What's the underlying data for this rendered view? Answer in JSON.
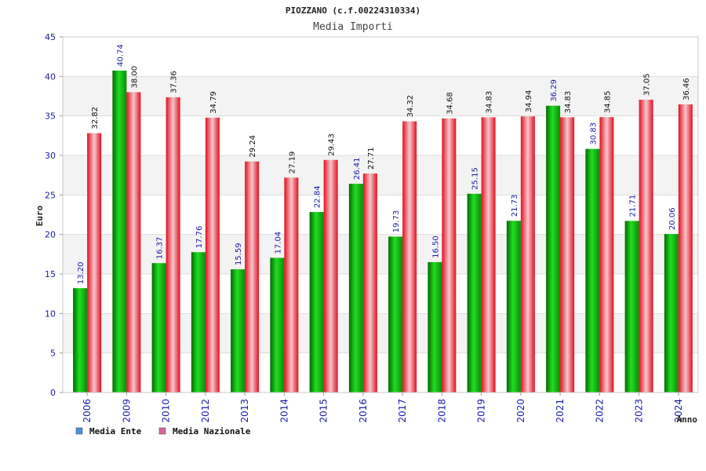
{
  "chart_data": {
    "type": "bar",
    "title": "PIOZZANO (c.f.00224310334)",
    "subtitle": "Media Importi",
    "xlabel": "Anno",
    "ylabel": "Euro",
    "ylim": [
      0,
      45
    ],
    "yticks": [
      0,
      5,
      10,
      15,
      20,
      25,
      30,
      35,
      40,
      45
    ],
    "categories": [
      "2006",
      "2009",
      "2010",
      "2012",
      "2013",
      "2014",
      "2015",
      "2016",
      "2017",
      "2018",
      "2019",
      "2020",
      "2021",
      "2022",
      "2023",
      "2024"
    ],
    "series": [
      {
        "name": "Media Ente",
        "color": "#12b312",
        "legend_color": "#4a90e2",
        "values": [
          13.2,
          40.74,
          16.37,
          17.76,
          15.59,
          17.04,
          22.84,
          26.41,
          19.73,
          16.5,
          25.15,
          21.73,
          36.29,
          30.83,
          21.71,
          20.06
        ],
        "labels": [
          "13.20",
          "40.74",
          "16.37",
          "17.76",
          "15.59",
          "17.04",
          "22.84",
          "26.41",
          "19.73",
          "16.50",
          "25.15",
          "21.73",
          "36.29",
          "30.83",
          "21.71",
          "20.06"
        ]
      },
      {
        "name": "Media Nazionale",
        "color": "#e8323c",
        "legend_color": "#d66a9a",
        "values": [
          32.82,
          38.0,
          37.36,
          34.79,
          29.24,
          27.19,
          29.43,
          27.71,
          34.32,
          34.68,
          34.83,
          34.94,
          34.83,
          34.85,
          37.05,
          36.46
        ],
        "labels": [
          "32.82",
          "38.00",
          "37.36",
          "34.79",
          "29.24",
          "27.19",
          "29.43",
          "27.71",
          "34.32",
          "34.68",
          "34.83",
          "34.94",
          "34.83",
          "34.85",
          "37.05",
          "36.46"
        ]
      }
    ],
    "grid": true,
    "legend_position": "bottom-left"
  },
  "colors": {
    "axis_text": "#1a1aa6",
    "label_ente": "#1a1aa6",
    "label_nazionale": "#111111",
    "band_alt": "#f3f3f3",
    "grid": "#dddddd"
  }
}
